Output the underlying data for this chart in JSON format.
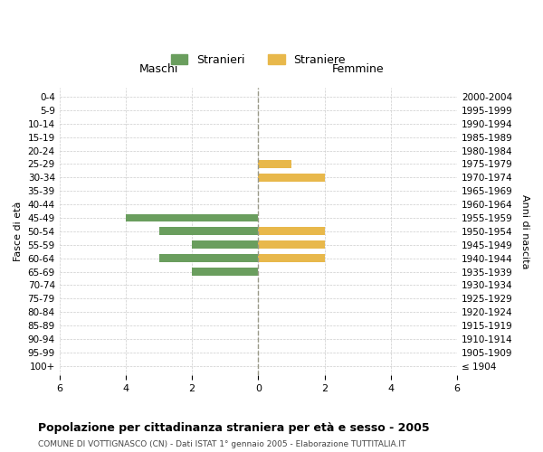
{
  "age_groups": [
    "100+",
    "95-99",
    "90-94",
    "85-89",
    "80-84",
    "75-79",
    "70-74",
    "65-69",
    "60-64",
    "55-59",
    "50-54",
    "45-49",
    "40-44",
    "35-39",
    "30-34",
    "25-29",
    "20-24",
    "15-19",
    "10-14",
    "5-9",
    "0-4"
  ],
  "birth_years": [
    "≤ 1904",
    "1905-1909",
    "1910-1914",
    "1915-1919",
    "1920-1924",
    "1925-1929",
    "1930-1934",
    "1935-1939",
    "1940-1944",
    "1945-1949",
    "1950-1954",
    "1955-1959",
    "1960-1964",
    "1965-1969",
    "1970-1974",
    "1975-1979",
    "1980-1984",
    "1985-1989",
    "1990-1994",
    "1995-1999",
    "2000-2004"
  ],
  "maschi": [
    0,
    0,
    0,
    0,
    0,
    0,
    0,
    2,
    3,
    2,
    3,
    4,
    0,
    0,
    0,
    0,
    0,
    0,
    0,
    0,
    0
  ],
  "femmine": [
    0,
    0,
    0,
    0,
    0,
    0,
    0,
    0,
    2,
    2,
    2,
    0,
    0,
    0,
    2,
    1,
    0,
    0,
    0,
    0,
    0
  ],
  "color_maschi": "#6a9e5e",
  "color_femmine": "#e8b84b",
  "title": "Popolazione per cittadinanza straniera per età e sesso - 2005",
  "subtitle": "COMUNE DI VOTTIGNASCO (CN) - Dati ISTAT 1° gennaio 2005 - Elaborazione TUTTITALIA.IT",
  "xlabel_left": "Maschi",
  "xlabel_right": "Femmine",
  "ylabel_left": "Fasce di età",
  "ylabel_right": "Anni di nascita",
  "legend_maschi": "Stranieri",
  "legend_femmine": "Straniere",
  "xlim": 6,
  "background_color": "#ffffff",
  "grid_color": "#cccccc",
  "center_line_color": "#999988"
}
